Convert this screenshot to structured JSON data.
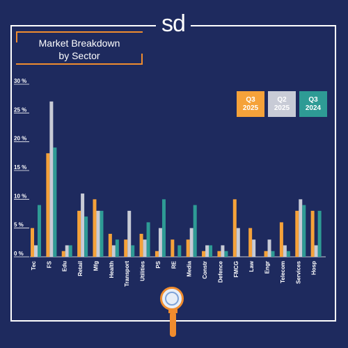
{
  "brand": {
    "logo_text": "sd"
  },
  "chart_data": {
    "type": "bar",
    "title": "Market Breakdown by Sector",
    "categories": [
      "Tec",
      "FS",
      "Edu",
      "Retail",
      "Mfg",
      "Health",
      "Transport",
      "Utilities",
      "PS",
      "RE",
      "Media",
      "Constr",
      "Defence",
      "FMCG",
      "Law",
      "Engr",
      "Telecom",
      "Services",
      "Hosp"
    ],
    "series": [
      {
        "name": "Q3 2025",
        "values": [
          5,
          18,
          1,
          8,
          10,
          4,
          3,
          4,
          1,
          3,
          3,
          1,
          1,
          10,
          5,
          1,
          6,
          8,
          8
        ]
      },
      {
        "name": "Q2 2025",
        "values": [
          2,
          27,
          2,
          11,
          8,
          2,
          8,
          3,
          5,
          0,
          5,
          2,
          2,
          5,
          3,
          3,
          2,
          10,
          2
        ]
      },
      {
        "name": "Q3 2024",
        "values": [
          9,
          19,
          2,
          7,
          8,
          3,
          2,
          6,
          10,
          2,
          9,
          2,
          1,
          0,
          0,
          1,
          1,
          9,
          8
        ]
      }
    ],
    "yticks": [
      "0 %",
      "5 %",
      "10 %",
      "15 %",
      "20 %",
      "25 %",
      "30 %"
    ],
    "ylim": [
      0,
      30
    ],
    "grid": false,
    "legend_position": "top-right",
    "colors": [
      "#f5a23a",
      "#c8cbd6",
      "#2e9b95"
    ]
  },
  "legend": [
    {
      "line1": "Q3",
      "line2": "2025",
      "color": "#f5a23a",
      "text_color": "#ffffff"
    },
    {
      "line1": "Q2",
      "line2": "2025",
      "color": "#c8cbd6",
      "text_color": "#ffffff"
    },
    {
      "line1": "Q3",
      "line2": "2024",
      "color": "#2e9b95",
      "text_color": "#ffffff"
    }
  ],
  "title_lines": [
    "Market Breakdown",
    "by Sector"
  ]
}
